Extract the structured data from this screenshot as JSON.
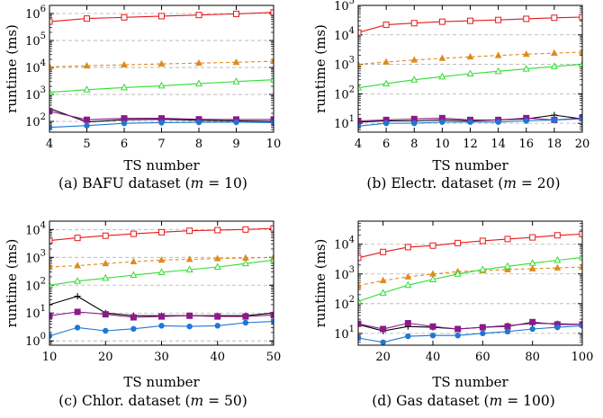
{
  "chart_data": [
    {
      "type": "line",
      "caption": "(a) BAFU dataset (m = 10)",
      "caption_prefix": "(a) BAFU dataset (",
      "caption_var": "m",
      "caption_suffix": " = 10)",
      "xlabel": "TS number",
      "ylabel": "runtime (ms)",
      "xscale": "linear",
      "yscale": "log",
      "xlim": [
        4,
        10
      ],
      "ylim": [
        40,
        2000000
      ],
      "xticks": [
        4,
        5,
        6,
        7,
        8,
        9,
        10
      ],
      "yticks": [
        100,
        1000,
        10000,
        100000,
        1000000
      ],
      "ytick_labels": [
        [
          "10",
          "2"
        ],
        [
          "10",
          "3"
        ],
        [
          "10",
          "4"
        ],
        [
          "10",
          "5"
        ],
        [
          "10",
          "6"
        ]
      ],
      "grid": "horizontal-dashed",
      "series": [
        {
          "color": "#e41a1c",
          "marker": "square",
          "dash": "",
          "x": [
            4,
            5,
            6,
            7,
            8,
            9,
            10
          ],
          "values": [
            500000,
            650000,
            720000,
            800000,
            880000,
            970000,
            1100000
          ]
        },
        {
          "color": "#e08a1e",
          "marker": "triangle",
          "dash": "4 3",
          "x": [
            4,
            5,
            6,
            7,
            8,
            9,
            10
          ],
          "values": [
            10500,
            11500,
            12500,
            13500,
            14500,
            15500,
            17000
          ]
        },
        {
          "color": "#33dd33",
          "marker": "triangle-open",
          "dash": "",
          "x": [
            4,
            5,
            6,
            7,
            8,
            9,
            10
          ],
          "values": [
            1200,
            1500,
            1800,
            2100,
            2500,
            3000,
            3500
          ]
        },
        {
          "color": "#000000",
          "marker": "plus",
          "dash": "",
          "x": [
            4,
            5,
            6,
            7,
            8,
            9,
            10
          ],
          "values": [
            300,
            95,
            115,
            120,
            110,
            105,
            100
          ]
        },
        {
          "color": "#8b1a8b",
          "marker": "square-filled",
          "dash": "",
          "x": [
            4,
            5,
            6,
            7,
            8,
            9,
            10
          ],
          "values": [
            240,
            115,
            130,
            130,
            120,
            118,
            118
          ]
        },
        {
          "color": "#1f77d4",
          "marker": "circle",
          "dash": "",
          "x": [
            4,
            5,
            6,
            7,
            8,
            9,
            10
          ],
          "values": [
            60,
            70,
            85,
            90,
            92,
            93,
            90
          ]
        }
      ]
    },
    {
      "type": "line",
      "caption": "(b) Electr. dataset (m = 20)",
      "caption_prefix": "(b) Electr. dataset (",
      "caption_var": "m",
      "caption_suffix": " = 20)",
      "xlabel": "TS number",
      "ylabel": "runtime (ms)",
      "xscale": "linear",
      "yscale": "log",
      "xlim": [
        4,
        20
      ],
      "ylim": [
        5,
        100000
      ],
      "xticks": [
        4,
        6,
        8,
        10,
        12,
        14,
        16,
        18,
        20
      ],
      "yticks": [
        10,
        100,
        1000,
        10000,
        100000
      ],
      "ytick_labels": [
        [
          "10",
          "1"
        ],
        [
          "10",
          "2"
        ],
        [
          "10",
          "3"
        ],
        [
          "10",
          "4"
        ],
        [
          "10",
          "5"
        ]
      ],
      "grid": "horizontal-dashed",
      "series": [
        {
          "color": "#e41a1c",
          "marker": "square",
          "dash": "",
          "x": [
            4,
            6,
            8,
            10,
            12,
            14,
            16,
            18,
            20
          ],
          "values": [
            12000,
            22000,
            25000,
            28000,
            30000,
            32000,
            35000,
            38000,
            40000
          ]
        },
        {
          "color": "#e08a1e",
          "marker": "triangle",
          "dash": "4 3",
          "x": [
            4,
            6,
            8,
            10,
            12,
            14,
            16,
            18,
            20
          ],
          "values": [
            1000,
            1200,
            1400,
            1600,
            1800,
            2000,
            2200,
            2400,
            2600
          ]
        },
        {
          "color": "#33dd33",
          "marker": "triangle-open",
          "dash": "",
          "x": [
            4,
            6,
            8,
            10,
            12,
            14,
            16,
            18,
            20
          ],
          "values": [
            160,
            220,
            300,
            380,
            480,
            580,
            700,
            850,
            1000
          ]
        },
        {
          "color": "#000000",
          "marker": "plus",
          "dash": "",
          "x": [
            4,
            6,
            8,
            10,
            12,
            14,
            16,
            18,
            20
          ],
          "values": [
            11,
            12,
            12,
            13,
            12,
            13,
            14,
            19,
            14
          ]
        },
        {
          "color": "#8b1a8b",
          "marker": "square-filled",
          "dash": "",
          "x": [
            4,
            6,
            8,
            10,
            12,
            14,
            16,
            18,
            20
          ],
          "values": [
            12,
            13,
            14,
            15,
            13,
            13,
            15,
            13,
            15
          ]
        },
        {
          "color": "#1f77d4",
          "marker": "circle",
          "dash": "",
          "x": [
            4,
            6,
            8,
            10,
            12,
            14,
            16,
            18,
            20
          ],
          "values": [
            8,
            10,
            10,
            11,
            11,
            11,
            12,
            13,
            14
          ]
        }
      ]
    },
    {
      "type": "line",
      "caption": "(c) Chlor. dataset (m = 50)",
      "caption_prefix": "(c) Chlor. dataset (",
      "caption_var": "m",
      "caption_suffix": " = 50)",
      "xlabel": "TS number",
      "ylabel": "runtime (ms)",
      "xscale": "linear",
      "yscale": "log",
      "xlim": [
        10,
        50
      ],
      "ylim": [
        0.7,
        20000
      ],
      "xticks": [
        10,
        20,
        30,
        40,
        50
      ],
      "yticks": [
        1,
        10,
        100,
        1000,
        10000
      ],
      "ytick_labels": [
        [
          "10",
          "0"
        ],
        [
          "10",
          "1"
        ],
        [
          "10",
          "2"
        ],
        [
          "10",
          "3"
        ],
        [
          "10",
          "4"
        ]
      ],
      "grid": "horizontal-dashed",
      "series": [
        {
          "color": "#e41a1c",
          "marker": "square",
          "dash": "",
          "x": [
            10,
            15,
            20,
            25,
            30,
            35,
            40,
            45,
            50
          ],
          "values": [
            4000,
            5000,
            6000,
            7000,
            8000,
            9000,
            9500,
            10000,
            11000
          ]
        },
        {
          "color": "#e08a1e",
          "marker": "triangle",
          "dash": "4 3",
          "x": [
            10,
            15,
            20,
            25,
            30,
            35,
            40,
            45,
            50
          ],
          "values": [
            450,
            500,
            600,
            700,
            800,
            850,
            900,
            950,
            1000
          ]
        },
        {
          "color": "#33dd33",
          "marker": "triangle-open",
          "dash": "",
          "x": [
            10,
            15,
            20,
            25,
            30,
            35,
            40,
            45,
            50
          ],
          "values": [
            100,
            140,
            180,
            230,
            290,
            360,
            450,
            600,
            800
          ]
        },
        {
          "color": "#000000",
          "marker": "plus",
          "dash": "",
          "x": [
            10,
            15,
            20,
            25,
            30,
            35,
            40,
            45,
            50
          ],
          "values": [
            20,
            40,
            10,
            8,
            8,
            8,
            8,
            8,
            10
          ]
        },
        {
          "color": "#8b1a8b",
          "marker": "square-filled",
          "dash": "",
          "x": [
            10,
            15,
            20,
            25,
            30,
            35,
            40,
            45,
            50
          ],
          "values": [
            8,
            11,
            9,
            7,
            7.5,
            8,
            7.5,
            7.5,
            8.5
          ]
        },
        {
          "color": "#1f77d4",
          "marker": "circle",
          "dash": "",
          "x": [
            10,
            15,
            20,
            25,
            30,
            35,
            40,
            45,
            50
          ],
          "values": [
            1.5,
            3,
            2.3,
            2.7,
            3.5,
            3.3,
            3.5,
            4.5,
            5
          ]
        }
      ]
    },
    {
      "type": "line",
      "caption": "(d) Gas dataset (m = 100)",
      "caption_prefix": "(d) Gas dataset (",
      "caption_var": "m",
      "caption_suffix": " = 100)",
      "xlabel": "TS number",
      "ylabel": "runtime (ms)",
      "xscale": "linear",
      "yscale": "log",
      "xlim": [
        10,
        100
      ],
      "ylim": [
        4,
        60000
      ],
      "xticks": [
        20,
        40,
        60,
        80,
        100
      ],
      "yticks": [
        10,
        100,
        1000,
        10000
      ],
      "ytick_labels": [
        [
          "10",
          "1"
        ],
        [
          "10",
          "2"
        ],
        [
          "10",
          "3"
        ],
        [
          "10",
          "4"
        ]
      ],
      "grid": "horizontal-dashed",
      "series": [
        {
          "color": "#e41a1c",
          "marker": "square",
          "dash": "",
          "x": [
            10,
            20,
            30,
            40,
            50,
            60,
            70,
            80,
            90,
            100
          ],
          "values": [
            3500,
            5500,
            8000,
            9000,
            11000,
            13000,
            15000,
            17000,
            20000,
            22000
          ]
        },
        {
          "color": "#e08a1e",
          "marker": "triangle",
          "dash": "4 3",
          "x": [
            10,
            20,
            30,
            40,
            50,
            60,
            70,
            80,
            90,
            100
          ],
          "values": [
            400,
            600,
            800,
            1000,
            1200,
            1300,
            1400,
            1500,
            1600,
            1700
          ]
        },
        {
          "color": "#33dd33",
          "marker": "triangle-open",
          "dash": "",
          "x": [
            10,
            20,
            30,
            40,
            50,
            60,
            70,
            80,
            90,
            100
          ],
          "values": [
            120,
            230,
            420,
            650,
            1000,
            1400,
            1800,
            2300,
            2900,
            3600
          ]
        },
        {
          "color": "#000000",
          "marker": "plus",
          "dash": "",
          "x": [
            10,
            20,
            30,
            40,
            50,
            60,
            70,
            80,
            90,
            100
          ],
          "values": [
            20,
            12,
            17,
            16,
            14,
            16,
            18,
            22,
            21,
            20
          ]
        },
        {
          "color": "#8b1a8b",
          "marker": "square-filled",
          "dash": "",
          "x": [
            10,
            20,
            30,
            40,
            50,
            60,
            70,
            80,
            90,
            100
          ],
          "values": [
            21,
            14,
            22,
            17,
            14,
            16,
            17,
            24,
            20,
            20
          ]
        },
        {
          "color": "#1f77d4",
          "marker": "circle",
          "dash": "",
          "x": [
            10,
            20,
            30,
            40,
            50,
            60,
            70,
            80,
            90,
            100
          ],
          "values": [
            7,
            5,
            8,
            8.5,
            8.5,
            10,
            11.5,
            14,
            16,
            18
          ]
        }
      ]
    }
  ]
}
